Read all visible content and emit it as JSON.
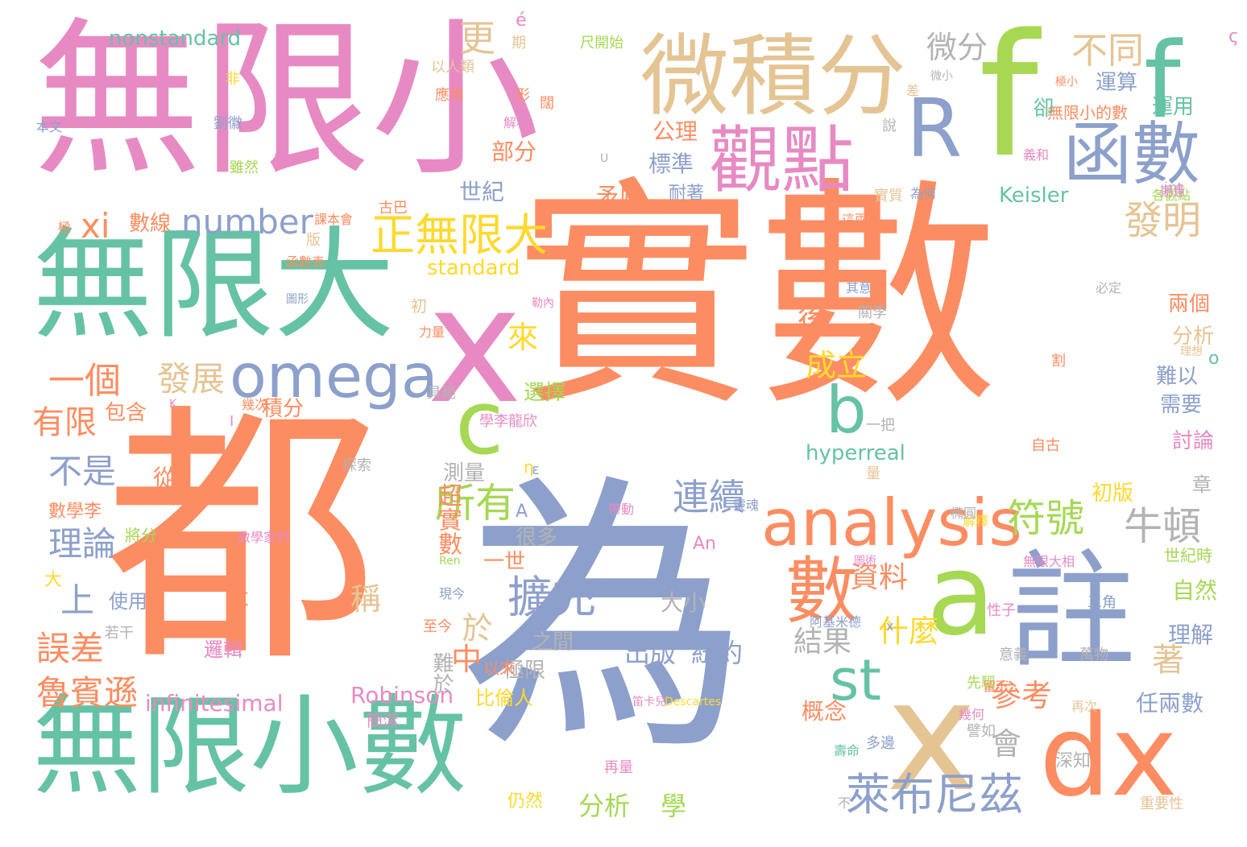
{
  "palette": {
    "pink": "#e78ac3",
    "orange": "#fc8d62",
    "green": "#66c2a5",
    "blue": "#8da0cb",
    "tan": "#e5c494",
    "lime": "#a6d854",
    "yellow": "#ffd92f",
    "gray": "#b3b3b3"
  },
  "words": [
    "實數",
    "都",
    "為",
    "無限小",
    "無限大",
    "無限小數",
    "微積分",
    "觀點",
    "函數",
    "f",
    "R",
    "x",
    "c",
    "a",
    "註",
    "dx",
    "analysis",
    "omega",
    "數",
    "st",
    "b",
    "正無限大",
    "萊布尼茲",
    "擴充",
    "連續",
    "所有",
    "符號",
    "牛頓",
    "發明",
    "不同",
    "更",
    "一個",
    "xi",
    "number",
    "發展",
    "有限",
    "不是",
    "理論",
    "上",
    "誤差",
    "魯賓遜",
    "infinitesimal",
    "Robinson",
    "hyperreal",
    "Keisler",
    "nonstandard",
    "standard",
    "超實數",
    "出版",
    "紐約",
    "分析",
    "學",
    "中",
    "於",
    "什麼",
    "參考",
    "會",
    "成立",
    "後",
    "來",
    "資料",
    "結果",
    "概念",
    "著",
    "微分",
    "公理",
    "標準",
    "世紀",
    "矛盾",
    "部分",
    "數線",
    "包含",
    "積分",
    "選擇",
    "稱",
    "大小",
    "難於",
    "極限",
    "很多",
    "測量",
    "一世",
    "之間",
    "以來",
    "比倫人",
    "自然",
    "理解",
    "任兩數",
    "討論",
    "需要",
    "難以",
    "兩個",
    "分析",
    "世紀時",
    "初版",
    "章",
    "運算",
    "運用",
    "無限小的數",
    "卻",
    "耐著",
    "為何",
    "各觀點",
    "int",
    "實質",
    "這兩種",
    "古巴",
    "課本會",
    "函數表",
    "圖形",
    "力量",
    "從",
    "數學李",
    "將分",
    "大",
    "使用",
    "若干",
    "邏輯",
    "簡潔",
    "至今",
    "現今",
    "先驅",
    "再次",
    "深知",
    "仍然",
    "再量",
    "不",
    "重要性",
    "壽命",
    "多邊",
    "幾何",
    "譬如",
    "留下",
    "意義",
    "萬物",
    "三角",
    "性子",
    "阿基米德",
    "ρ",
    "Σ",
    "Descartes",
    "笛卡兒",
    "An",
    "A",
    "Ren",
    "η",
    "o",
    "ς",
    "é",
    "尺開始",
    "以人類",
    "應用",
    "形",
    "闊",
    "解析",
    "劉徽",
    "本文",
    "雖然",
    "非",
    "期",
    "說",
    "差",
    "極小",
    "微小",
    "義和",
    "必定",
    "關李",
    "其意",
    "勒內",
    "理想",
    "割",
    "自古",
    "學李龍欣",
    "一把",
    "探索",
    "靈魂",
    "解釋",
    "帶動",
    "無限大相",
    "圖術",
    "橢圓",
    "量",
    "具範",
    "幾次",
    "初",
    "版",
    "極",
    "U",
    "K",
    "I",
    "ε",
    "x",
    "數學家們",
    "期意"
  ]
}
